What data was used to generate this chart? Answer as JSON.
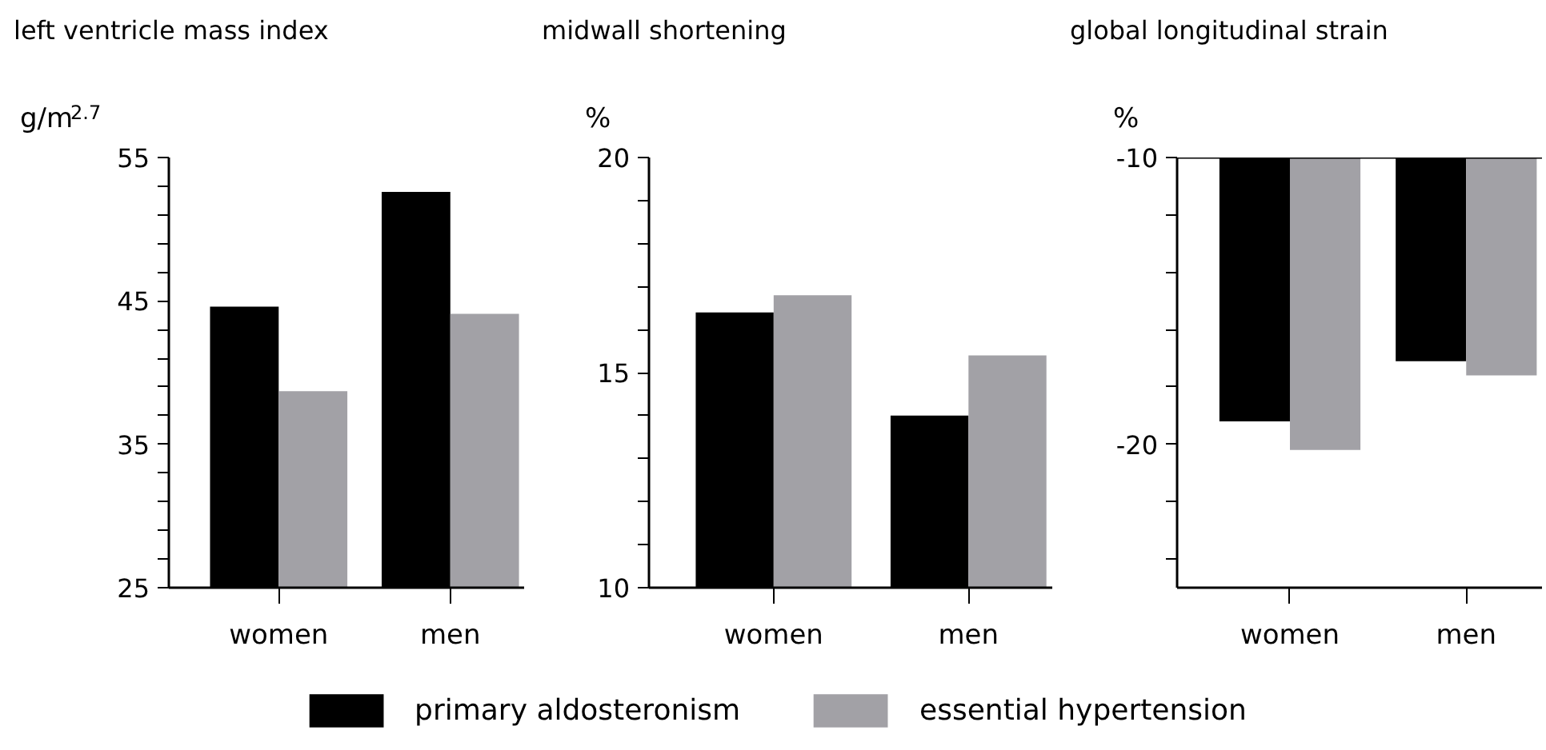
{
  "chart_data": [
    {
      "type": "bar",
      "title": "left ventricle mass index",
      "ylabel": "g/m$^{2.7}$",
      "categories": [
        "women",
        "men"
      ],
      "series": [
        {
          "name": "primary aldosteronism",
          "color": "#000000",
          "values": [
            44.6,
            52.6
          ]
        },
        {
          "name": "essential hypertension",
          "color": "#a2a1a6",
          "values": [
            38.7,
            44.1
          ]
        }
      ],
      "ylim": [
        25,
        55
      ],
      "yticks": [
        25,
        {
          "value": 27,
          "label": null
        },
        {
          "value": 29,
          "label": null
        },
        {
          "value": 31,
          "label": null
        },
        {
          "value": 33,
          "label": null
        },
        35,
        {
          "value": 37,
          "label": null
        },
        {
          "value": 39,
          "label": null
        },
        {
          "value": 41,
          "label": null
        },
        {
          "value": 43,
          "label": null
        },
        45,
        {
          "value": 47,
          "label": null
        },
        {
          "value": 49,
          "label": null
        },
        {
          "value": 51,
          "label": null
        },
        {
          "value": 53,
          "label": null
        },
        55
      ],
      "legend": "bottom"
    },
    {
      "type": "bar",
      "title": "midwall shortening",
      "ylabel": "%",
      "categories": [
        "women",
        "men"
      ],
      "series": [
        {
          "color": "#000000",
          "values": [
            16.4,
            14.0
          ]
        },
        {
          "color": "#a2a1a6",
          "values": [
            16.8,
            15.4
          ]
        }
      ],
      "ylim": [
        10,
        20
      ],
      "yticks": [
        10,
        {
          "value": 11,
          "label": null
        },
        {
          "value": 12,
          "label": null
        },
        {
          "value": 13,
          "label": null
        },
        {
          "value": 14,
          "label": null
        },
        15,
        {
          "value": 16,
          "label": null
        },
        {
          "value": 17,
          "label": null
        },
        {
          "value": 18,
          "label": null
        },
        {
          "value": 19,
          "label": null
        },
        20
      ]
    },
    {
      "type": "bar",
      "title": "global longitudinal strain",
      "ylabel": "%",
      "categories": [
        "women",
        "men"
      ],
      "series": [
        {
          "color": "#000000",
          "values": [
            -19.2,
            -17.1
          ]
        },
        {
          "color": "#a2a1a6",
          "values": [
            -20.2,
            -17.6
          ]
        }
      ],
      "ylim": [
        -25,
        -10
      ],
      "yticks": [
        -10,
        {
          "value": -12,
          "label": null
        },
        {
          "value": -14,
          "label": null
        },
        {
          "value": -16,
          "label": null
        },
        {
          "value": -18,
          "label": null
        },
        -20,
        {
          "value": -22,
          "label": null
        },
        {
          "value": -24,
          "label": null
        }
      ]
    }
  ]
}
